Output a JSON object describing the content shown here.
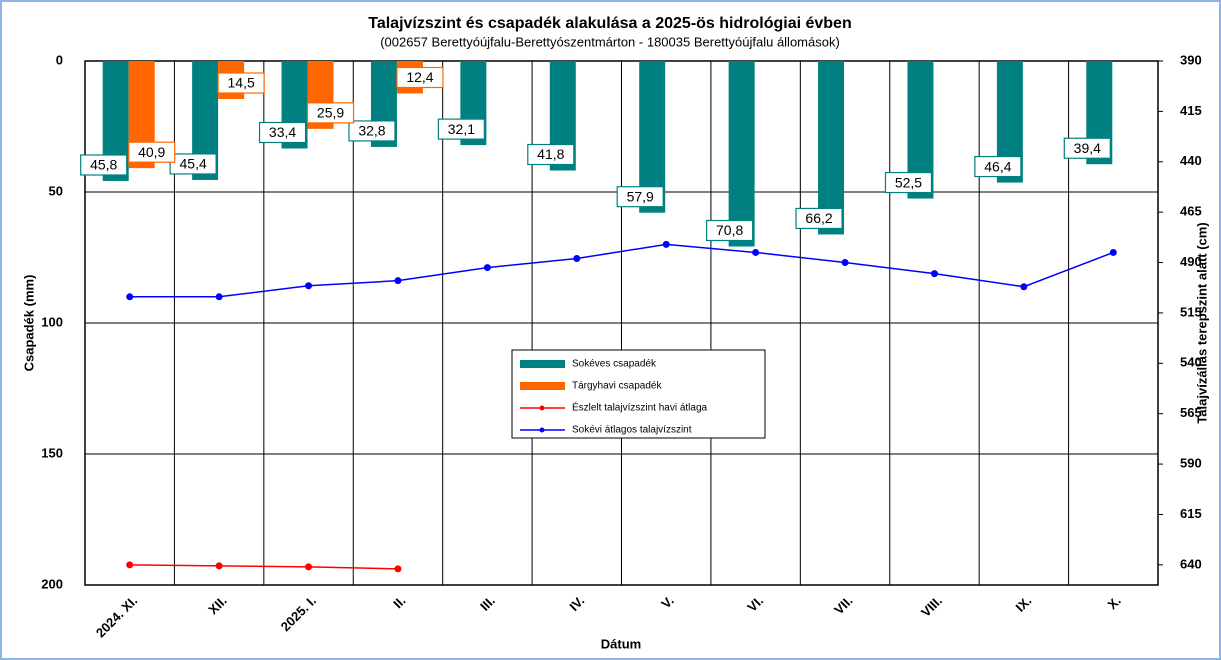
{
  "chart_data": {
    "type": "bar",
    "title": "Talajvízszint és csapadék alakulása a 2025-ös hidrológiai évben",
    "subtitle": "(002657  Berettyóújfalu-Berettyószentmárton  - 180035  Berettyóújfalu  állomások)",
    "x_label": "Dátum",
    "y_label": "Csapadék (mm)",
    "y2_label": "Talajvízállás terepszint alatt (cm)",
    "categories": [
      "2024. XI.",
      "XII.",
      "2025. I.",
      "II.",
      "III.",
      "IV.",
      "V.",
      "VI.",
      "VII.",
      "VIII.",
      "IX.",
      "X."
    ],
    "ylim": [
      0,
      200
    ],
    "yticks": [
      0,
      50,
      100,
      150,
      200
    ],
    "y_inverted": true,
    "y2lim": [
      390,
      650
    ],
    "y2ticks": [
      390,
      415,
      440,
      465,
      490,
      515,
      540,
      565,
      590,
      615,
      640
    ],
    "y2_inverted": true,
    "grid": true,
    "legend": "center",
    "series": [
      {
        "name": "Sokéves csapadék",
        "type": "bar",
        "color": "#008080",
        "values": [
          45.8,
          45.4,
          33.4,
          32.8,
          32.1,
          41.8,
          57.9,
          70.8,
          66.2,
          52.5,
          46.4,
          39.4
        ],
        "value_labels": [
          "45,8",
          "45,4",
          "33,4",
          "32,8",
          "32,1",
          "41,8",
          "57,9",
          "70,8",
          "66,2",
          "52,5",
          "46,4",
          "39,4"
        ]
      },
      {
        "name": "Tárgyhavi csapadék",
        "type": "bar",
        "color": "#ff6600",
        "values": [
          40.9,
          14.5,
          25.9,
          12.4,
          null,
          null,
          null,
          null,
          null,
          null,
          null,
          null
        ],
        "value_labels": [
          "40,9",
          "14,5",
          "25,9",
          "12,4",
          null,
          null,
          null,
          null,
          null,
          null,
          null,
          null
        ]
      },
      {
        "name": "Észlelt talajvízszint havi átlaga",
        "type": "line",
        "axis": "y2",
        "color": "#ff0000",
        "values": [
          640,
          640.5,
          641,
          642,
          null,
          null,
          null,
          null,
          null,
          null,
          null,
          null
        ]
      },
      {
        "name": "Sokévi átlagos talajvízszint",
        "type": "line",
        "axis": "y2",
        "color": "#0000ff",
        "values": [
          507,
          507,
          501.5,
          499,
          492.5,
          488,
          481,
          485,
          490,
          495.5,
          502,
          485
        ]
      }
    ]
  }
}
